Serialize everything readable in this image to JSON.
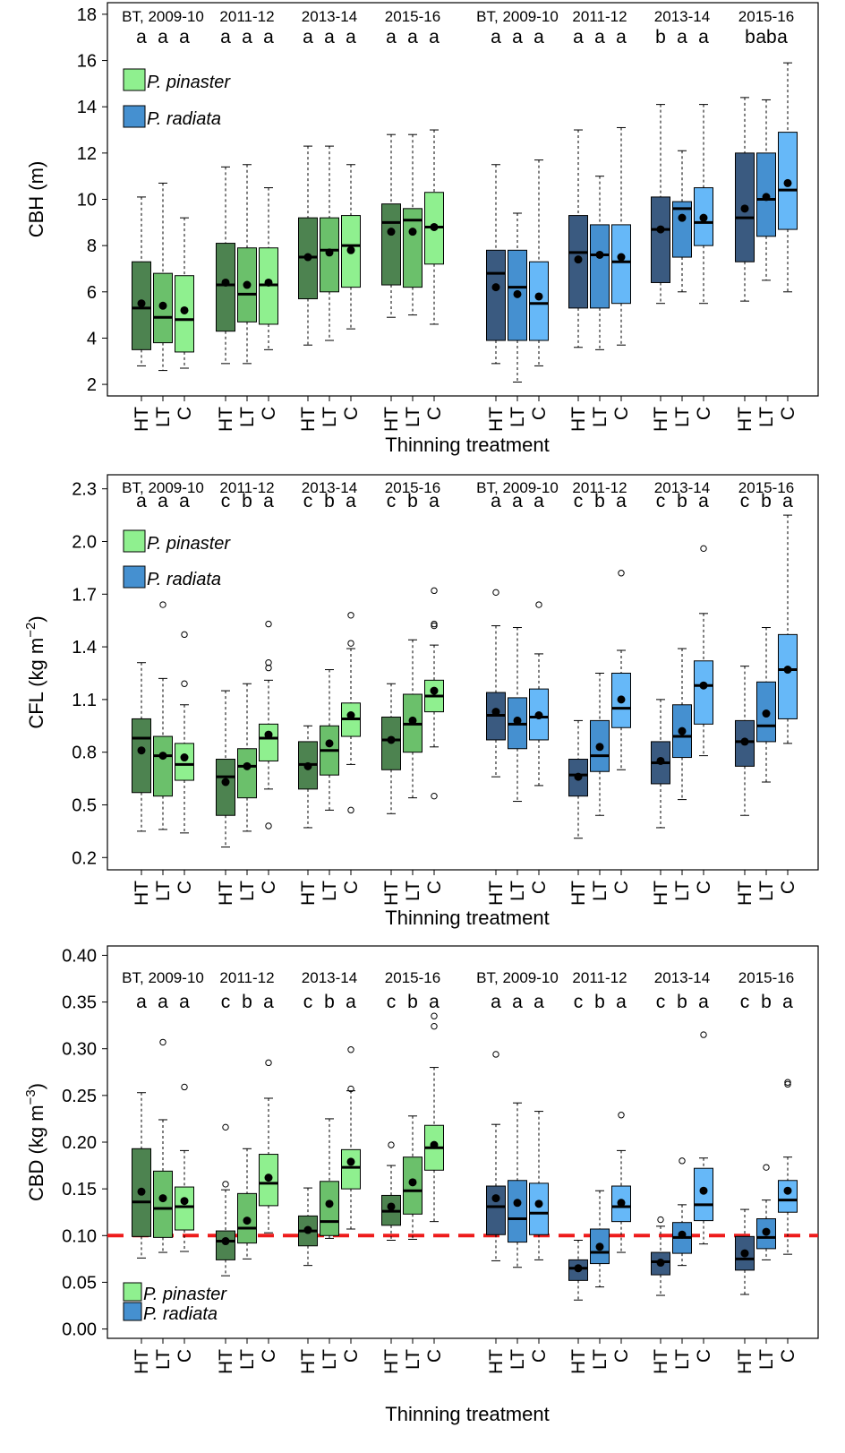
{
  "colors": {
    "pinaster_dark": "#4d8350",
    "pinaster_mid": "#6bc06b",
    "pinaster_light": "#8ff08f",
    "radiata_dark": "#3a5a80",
    "radiata_mid": "#4590d0",
    "radiata_light": "#66b8f8",
    "threshold_line": "#ee1c1c"
  },
  "chart_data": [
    {
      "id": "cbh",
      "type": "box",
      "ylabel": "CBH (m)",
      "xlabel": "Thinning treatment",
      "ylim": [
        1.5,
        18.5
      ],
      "yticks": [
        "2",
        "4",
        "6",
        "8",
        "10",
        "12",
        "14",
        "16",
        "18"
      ],
      "ytick_values": [
        2,
        4,
        6,
        8,
        10,
        12,
        14,
        16,
        18
      ],
      "period_labels": [
        "BT, 2009-10",
        "2011-12",
        "2013-14",
        "2015-16",
        "BT, 2009-10",
        "2011-12",
        "2013-14",
        "2015-16"
      ],
      "letters": [
        [
          "a",
          "a",
          "a"
        ],
        [
          "a",
          "a",
          "a"
        ],
        [
          "a",
          "a",
          "a"
        ],
        [
          "a",
          "a",
          "a"
        ],
        [
          "a",
          "a",
          "a"
        ],
        [
          "a",
          "a",
          "a"
        ],
        [
          "b",
          "a",
          "a"
        ],
        [
          "b",
          "ab",
          "a"
        ]
      ],
      "treatments": [
        "HT",
        "LT",
        "C"
      ],
      "legend": [
        "P. pinaster",
        "P. radiata"
      ],
      "legend_position": "top-left",
      "boxes": [
        [
          [
            2.8,
            3.5,
            5.3,
            7.3,
            10.1,
            5.5,
            []
          ],
          [
            2.6,
            3.8,
            4.9,
            6.8,
            10.7,
            5.4,
            []
          ],
          [
            2.7,
            3.4,
            4.8,
            6.7,
            9.2,
            5.2,
            []
          ]
        ],
        [
          [
            2.9,
            4.3,
            6.3,
            8.1,
            11.4,
            6.4,
            []
          ],
          [
            2.9,
            4.7,
            5.9,
            7.9,
            11.5,
            6.3,
            []
          ],
          [
            3.5,
            4.6,
            6.3,
            7.9,
            10.5,
            6.4,
            []
          ]
        ],
        [
          [
            3.7,
            5.7,
            7.5,
            9.2,
            12.3,
            7.5,
            []
          ],
          [
            3.9,
            6.0,
            7.8,
            9.2,
            12.3,
            7.7,
            []
          ],
          [
            4.4,
            6.2,
            8.0,
            9.3,
            11.5,
            7.8,
            []
          ]
        ],
        [
          [
            4.9,
            6.3,
            9.0,
            9.8,
            12.8,
            8.6,
            []
          ],
          [
            5.0,
            6.2,
            9.1,
            9.6,
            12.8,
            8.6,
            []
          ],
          [
            4.6,
            7.2,
            8.8,
            10.3,
            13.0,
            8.8,
            []
          ]
        ],
        [
          [
            2.9,
            3.9,
            6.8,
            7.8,
            11.5,
            6.2,
            []
          ],
          [
            2.1,
            3.9,
            6.2,
            7.8,
            9.4,
            5.9,
            []
          ],
          [
            2.8,
            3.9,
            5.5,
            7.3,
            11.7,
            5.8,
            []
          ]
        ],
        [
          [
            3.6,
            5.3,
            7.7,
            9.3,
            13.0,
            7.4,
            []
          ],
          [
            3.5,
            5.3,
            7.6,
            8.9,
            11.0,
            7.6,
            []
          ],
          [
            3.7,
            5.5,
            7.3,
            8.9,
            13.1,
            7.5,
            []
          ]
        ],
        [
          [
            5.5,
            6.4,
            8.7,
            10.1,
            14.1,
            8.7,
            []
          ],
          [
            6.0,
            7.5,
            9.6,
            9.9,
            12.1,
            9.2,
            []
          ],
          [
            5.5,
            8.0,
            9.0,
            10.5,
            14.1,
            9.2,
            []
          ]
        ],
        [
          [
            5.6,
            7.3,
            9.2,
            12.0,
            14.4,
            9.6,
            []
          ],
          [
            6.5,
            8.4,
            10.0,
            12.0,
            14.3,
            10.1,
            []
          ],
          [
            6.0,
            8.7,
            10.4,
            12.9,
            15.9,
            10.7,
            []
          ]
        ]
      ]
    },
    {
      "id": "cfl",
      "type": "box",
      "ylabel_main": "CFL (kg m",
      "ylabel_exp": "−2",
      "ylabel_close": ")",
      "xlabel": "Thinning treatment",
      "ylim": [
        0.13,
        2.38
      ],
      "yticks": [
        "0.2",
        "0.5",
        "0.8",
        "1.1",
        "1.4",
        "1.7",
        "2.0",
        "2.3"
      ],
      "ytick_values": [
        0.2,
        0.5,
        0.8,
        1.1,
        1.4,
        1.7,
        2.0,
        2.3
      ],
      "period_labels": [
        "BT, 2009-10",
        "2011-12",
        "2013-14",
        "2015-16",
        "BT, 2009-10",
        "2011-12",
        "2013-14",
        "2015-16"
      ],
      "letters": [
        [
          "a",
          "a",
          "a"
        ],
        [
          "c",
          "b",
          "a"
        ],
        [
          "c",
          "b",
          "a"
        ],
        [
          "c",
          "b",
          "a"
        ],
        [
          "a",
          "a",
          "a"
        ],
        [
          "c",
          "b",
          "a"
        ],
        [
          "c",
          "b",
          "a"
        ],
        [
          "c",
          "b",
          "a"
        ]
      ],
      "treatments": [
        "HT",
        "LT",
        "C"
      ],
      "legend": [
        "P. pinaster",
        "P. radiata"
      ],
      "legend_position": "top-left",
      "boxes": [
        [
          [
            0.35,
            0.57,
            0.88,
            0.99,
            1.31,
            0.81,
            []
          ],
          [
            0.36,
            0.55,
            0.78,
            0.89,
            1.22,
            0.78,
            [
              1.64
            ]
          ],
          [
            0.34,
            0.64,
            0.73,
            0.85,
            1.07,
            0.77,
            [
              1.19,
              1.47
            ]
          ]
        ],
        [
          [
            0.26,
            0.44,
            0.66,
            0.76,
            1.15,
            0.63,
            []
          ],
          [
            0.35,
            0.54,
            0.72,
            0.82,
            1.19,
            0.72,
            []
          ],
          [
            0.59,
            0.75,
            0.88,
            0.96,
            1.21,
            0.9,
            [
              0.38,
              1.28,
              1.31,
              1.53
            ]
          ]
        ],
        [
          [
            0.37,
            0.59,
            0.73,
            0.86,
            0.95,
            0.72,
            []
          ],
          [
            0.47,
            0.67,
            0.81,
            0.95,
            1.27,
            0.85,
            []
          ],
          [
            0.73,
            0.89,
            0.99,
            1.08,
            1.39,
            1.01,
            [
              0.47,
              1.42,
              1.58
            ]
          ]
        ],
        [
          [
            0.45,
            0.7,
            0.87,
            1.0,
            1.19,
            0.87,
            []
          ],
          [
            0.54,
            0.8,
            0.96,
            1.13,
            1.44,
            0.98,
            []
          ],
          [
            0.83,
            1.03,
            1.12,
            1.21,
            1.41,
            1.15,
            [
              0.55,
              1.52,
              1.53,
              1.72
            ]
          ]
        ],
        [
          [
            0.66,
            0.87,
            1.01,
            1.14,
            1.52,
            1.03,
            [
              1.71
            ]
          ],
          [
            0.52,
            0.82,
            0.96,
            1.11,
            1.51,
            0.98,
            []
          ],
          [
            0.61,
            0.87,
            1.0,
            1.16,
            1.36,
            1.01,
            [
              1.64
            ]
          ]
        ],
        [
          [
            0.31,
            0.55,
            0.67,
            0.76,
            0.98,
            0.66,
            []
          ],
          [
            0.44,
            0.69,
            0.78,
            0.98,
            1.25,
            0.83,
            []
          ],
          [
            0.7,
            0.94,
            1.05,
            1.25,
            1.38,
            1.1,
            [
              1.82
            ]
          ]
        ],
        [
          [
            0.37,
            0.62,
            0.74,
            0.86,
            1.1,
            0.75,
            []
          ],
          [
            0.53,
            0.77,
            0.89,
            1.07,
            1.39,
            0.92,
            []
          ],
          [
            0.78,
            0.96,
            1.18,
            1.32,
            1.59,
            1.18,
            [
              1.96
            ]
          ]
        ],
        [
          [
            0.44,
            0.72,
            0.86,
            0.98,
            1.29,
            0.86,
            []
          ],
          [
            0.63,
            0.86,
            0.95,
            1.2,
            1.51,
            1.02,
            []
          ],
          [
            0.85,
            0.99,
            1.27,
            1.47,
            2.15,
            1.27,
            []
          ]
        ]
      ]
    },
    {
      "id": "cbd",
      "type": "box",
      "ylabel_main": "CBD (kg m",
      "ylabel_exp": "−3",
      "ylabel_close": ")",
      "xlabel": "Thinning treatment",
      "ylim": [
        -0.01,
        0.41
      ],
      "yticks": [
        "0.00",
        "0.05",
        "0.10",
        "0.15",
        "0.20",
        "0.25",
        "0.30",
        "0.35",
        "0.40"
      ],
      "ytick_values": [
        0,
        0.05,
        0.1,
        0.15,
        0.2,
        0.25,
        0.3,
        0.35,
        0.4
      ],
      "threshold": 0.1,
      "period_labels": [
        "BT, 2009-10",
        "2011-12",
        "2013-14",
        "2015-16",
        "BT, 2009-10",
        "2011-12",
        "2013-14",
        "2015-16"
      ],
      "letters": [
        [
          "a",
          "a",
          "a"
        ],
        [
          "c",
          "b",
          "a"
        ],
        [
          "c",
          "b",
          "a"
        ],
        [
          "c",
          "b",
          "a"
        ],
        [
          "a",
          "a",
          "a"
        ],
        [
          "c",
          "b",
          "a"
        ],
        [
          "c",
          "b",
          "a"
        ],
        [
          "c",
          "b",
          "a"
        ]
      ],
      "treatments": [
        "HT",
        "LT",
        "C"
      ],
      "legend": [
        "P. pinaster",
        "P. radiata"
      ],
      "legend_position": "bottom-left",
      "boxes": [
        [
          [
            0.076,
            0.099,
            0.136,
            0.193,
            0.253,
            0.147,
            []
          ],
          [
            0.082,
            0.098,
            0.129,
            0.169,
            0.224,
            0.14,
            [
              0.307
            ]
          ],
          [
            0.083,
            0.106,
            0.131,
            0.152,
            0.191,
            0.137,
            [
              0.259
            ]
          ]
        ],
        [
          [
            0.057,
            0.074,
            0.094,
            0.105,
            0.149,
            0.094,
            [
              0.155,
              0.216
            ]
          ],
          [
            0.075,
            0.092,
            0.108,
            0.145,
            0.193,
            0.116,
            []
          ],
          [
            0.103,
            0.132,
            0.156,
            0.187,
            0.247,
            0.162,
            [
              0.285
            ]
          ]
        ],
        [
          [
            0.068,
            0.089,
            0.105,
            0.121,
            0.151,
            0.106,
            []
          ],
          [
            0.097,
            0.1,
            0.115,
            0.158,
            0.225,
            0.134,
            []
          ],
          [
            0.107,
            0.15,
            0.173,
            0.192,
            0.255,
            0.179,
            [
              0.257,
              0.299
            ]
          ]
        ],
        [
          [
            0.095,
            0.111,
            0.126,
            0.143,
            0.175,
            0.131,
            [
              0.197
            ]
          ],
          [
            0.096,
            0.123,
            0.148,
            0.184,
            0.228,
            0.157,
            []
          ],
          [
            0.115,
            0.17,
            0.194,
            0.218,
            0.28,
            0.197,
            [
              0.324,
              0.335
            ]
          ]
        ],
        [
          [
            0.073,
            0.101,
            0.131,
            0.153,
            0.219,
            0.14,
            [
              0.294
            ]
          ],
          [
            0.066,
            0.093,
            0.118,
            0.159,
            0.242,
            0.135,
            []
          ],
          [
            0.074,
            0.101,
            0.124,
            0.156,
            0.233,
            0.134,
            []
          ]
        ],
        [
          [
            0.031,
            0.052,
            0.065,
            0.074,
            0.095,
            0.065,
            []
          ],
          [
            0.045,
            0.07,
            0.082,
            0.107,
            0.148,
            0.088,
            []
          ],
          [
            0.082,
            0.115,
            0.131,
            0.153,
            0.191,
            0.135,
            [
              0.229
            ]
          ]
        ],
        [
          [
            0.036,
            0.058,
            0.072,
            0.082,
            0.11,
            0.071,
            [
              0.117
            ]
          ],
          [
            0.068,
            0.081,
            0.098,
            0.114,
            0.133,
            0.101,
            [
              0.18
            ]
          ],
          [
            0.091,
            0.116,
            0.133,
            0.172,
            0.183,
            0.148,
            [
              0.315
            ]
          ]
        ],
        [
          [
            0.037,
            0.063,
            0.075,
            0.099,
            0.128,
            0.081,
            []
          ],
          [
            0.074,
            0.086,
            0.098,
            0.118,
            0.138,
            0.104,
            [
              0.173
            ]
          ],
          [
            0.08,
            0.125,
            0.138,
            0.159,
            0.184,
            0.148,
            [
              0.262,
              0.264
            ]
          ]
        ]
      ]
    }
  ]
}
